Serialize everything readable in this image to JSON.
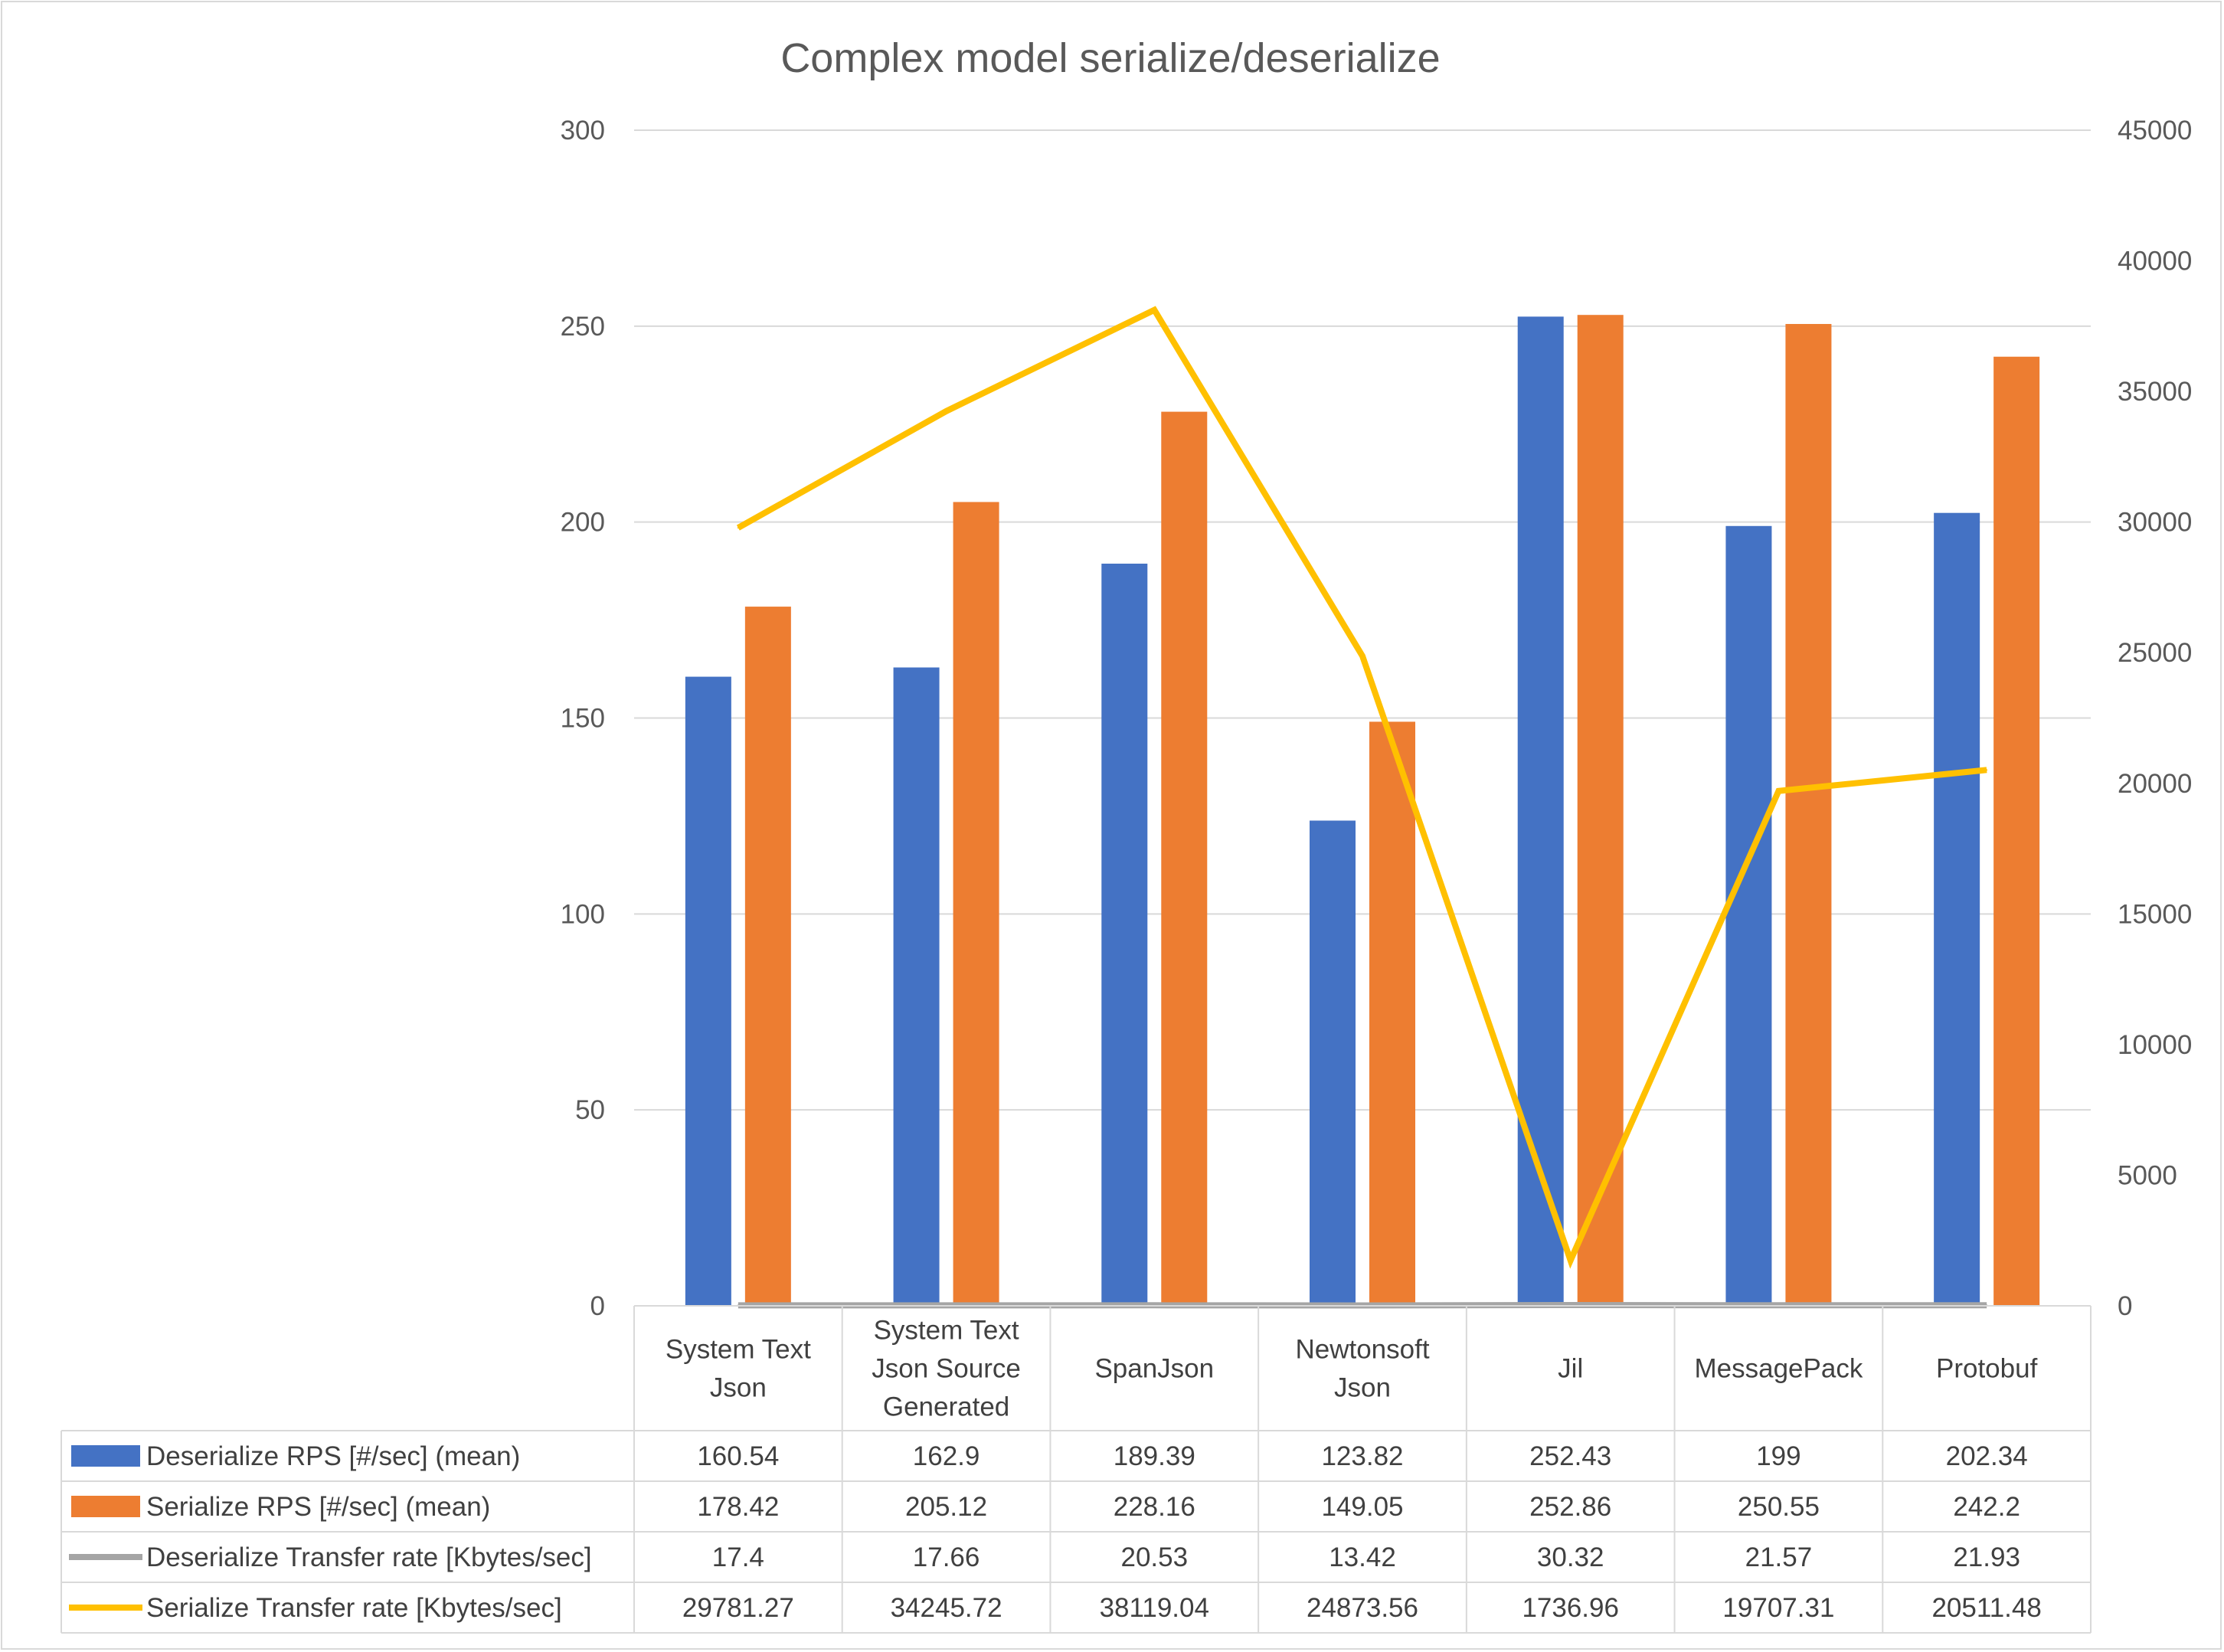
{
  "chart_data": {
    "type": "bar",
    "title": "Complex model serialize/deserialize",
    "categories": [
      [
        "System Text",
        "Json"
      ],
      [
        "System Text",
        "Json Source",
        "Generated"
      ],
      [
        "SpanJson"
      ],
      [
        "Newtonsoft",
        "Json"
      ],
      [
        "Jil"
      ],
      [
        "MessagePack"
      ],
      [
        "Protobuf"
      ]
    ],
    "y_left": {
      "ylim": [
        0,
        300
      ],
      "ticks": [
        0,
        50,
        100,
        150,
        200,
        250,
        300
      ]
    },
    "y_right": {
      "ylim": [
        0,
        45000
      ],
      "ticks": [
        0,
        5000,
        10000,
        15000,
        20000,
        25000,
        30000,
        35000,
        40000,
        45000
      ]
    },
    "grid": true,
    "legend": "data-table",
    "series": [
      {
        "name": "Deserialize RPS [#/sec] (mean)",
        "type": "bar",
        "axis": "left",
        "color": "#4472c4",
        "values": [
          160.54,
          162.9,
          189.39,
          123.82,
          252.43,
          199,
          202.34
        ],
        "labels": [
          "160.54",
          "162.9",
          "189.39",
          "123.82",
          "252.43",
          "199",
          "202.34"
        ]
      },
      {
        "name": "Serialize RPS [#/sec] (mean)",
        "type": "bar",
        "axis": "left",
        "color": "#ed7d31",
        "values": [
          178.42,
          205.12,
          228.16,
          149.05,
          252.86,
          250.55,
          242.2
        ],
        "labels": [
          "178.42",
          "205.12",
          "228.16",
          "149.05",
          "252.86",
          "250.55",
          "242.2"
        ]
      },
      {
        "name": "Deserialize Transfer rate [Kbytes/sec]",
        "type": "line",
        "axis": "right",
        "color": "#a5a5a5",
        "values": [
          17.4,
          17.66,
          20.53,
          13.42,
          30.32,
          21.57,
          21.93
        ],
        "labels": [
          "17.4",
          "17.66",
          "20.53",
          "13.42",
          "30.32",
          "21.57",
          "21.93"
        ]
      },
      {
        "name": "Serialize Transfer rate [Kbytes/sec]",
        "type": "line",
        "axis": "right",
        "color": "#ffc000",
        "values": [
          29781.27,
          34245.72,
          38119.04,
          24873.56,
          1736.96,
          19707.31,
          20511.48
        ],
        "labels": [
          "29781.27",
          "34245.72",
          "38119.04",
          "24873.56",
          "1736.96",
          "19707.31",
          "20511.48"
        ]
      }
    ]
  }
}
